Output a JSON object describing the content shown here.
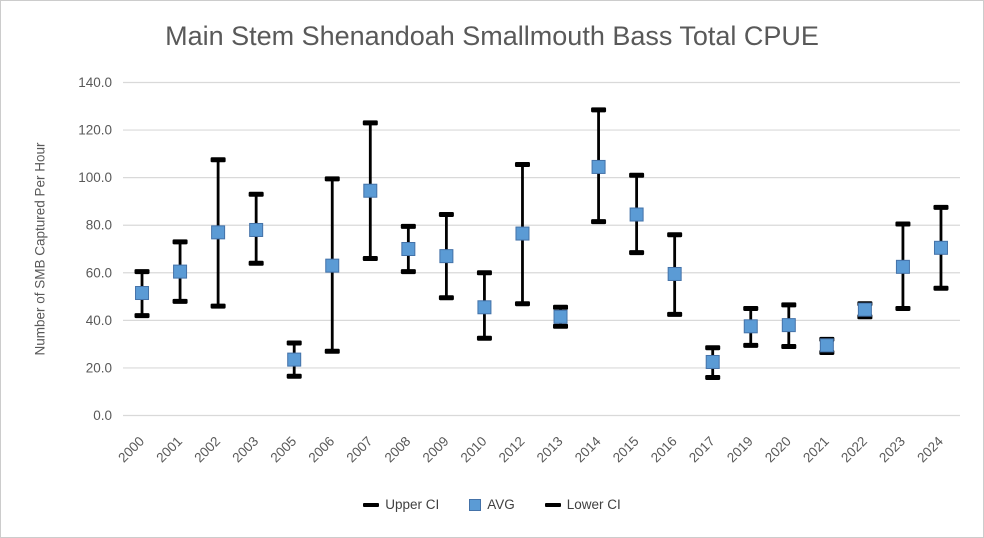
{
  "colors": {
    "title_text": "#595959",
    "axis_text": "#595959",
    "gridline": "#d9d9d9",
    "error_bar": "#000000",
    "marker_fill": "#5b9bd5",
    "marker_border": "#4472a8",
    "legend_text": "#404040",
    "frame_border": "#cccccc"
  },
  "chart_data": {
    "type": "scatter",
    "subtype": "error-bar",
    "title": "Main Stem Shenandoah Smallmouth Bass Total CPUE",
    "xlabel": "",
    "ylabel": "Number of SMB Captured Per Hour",
    "ylim": [
      0,
      140
    ],
    "yticks": [
      0,
      20,
      40,
      60,
      80,
      100,
      120,
      140
    ],
    "ytick_decimals": 1,
    "grid": "horizontal",
    "legend_position": "bottom",
    "categories": [
      "2000",
      "2001",
      "2002",
      "2003",
      "2005",
      "2006",
      "2007",
      "2008",
      "2009",
      "2010",
      "2012",
      "2013",
      "2014",
      "2015",
      "2016",
      "2017",
      "2019",
      "2020",
      "2021",
      "2022",
      "2023",
      "2024"
    ],
    "series": [
      {
        "name": "Upper CI",
        "marker": "dash-icon",
        "color": "#000000",
        "values": [
          60.5,
          73,
          107.5,
          93,
          30.5,
          99.5,
          123,
          79.5,
          84.5,
          60,
          105.5,
          45.5,
          128.5,
          101,
          76,
          28.5,
          45,
          46.5,
          32,
          47,
          80.5,
          87.5
        ]
      },
      {
        "name": "AVG",
        "marker": "square-icon",
        "color": "#5b9bd5",
        "values": [
          51.5,
          60.5,
          77,
          78,
          23.5,
          63,
          94.5,
          70,
          67,
          45.5,
          76.5,
          41.5,
          104.5,
          84.5,
          59.5,
          22.5,
          37.5,
          38,
          29.5,
          44.5,
          62.5,
          70.5
        ]
      },
      {
        "name": "Lower CI",
        "marker": "dash-icon",
        "color": "#000000",
        "values": [
          42,
          48,
          46,
          64,
          16.5,
          27,
          66,
          60.5,
          49.5,
          32.5,
          47,
          37.5,
          81.5,
          68.5,
          42.5,
          16,
          29.5,
          29,
          26.5,
          41.5,
          45,
          53.5
        ]
      }
    ]
  }
}
